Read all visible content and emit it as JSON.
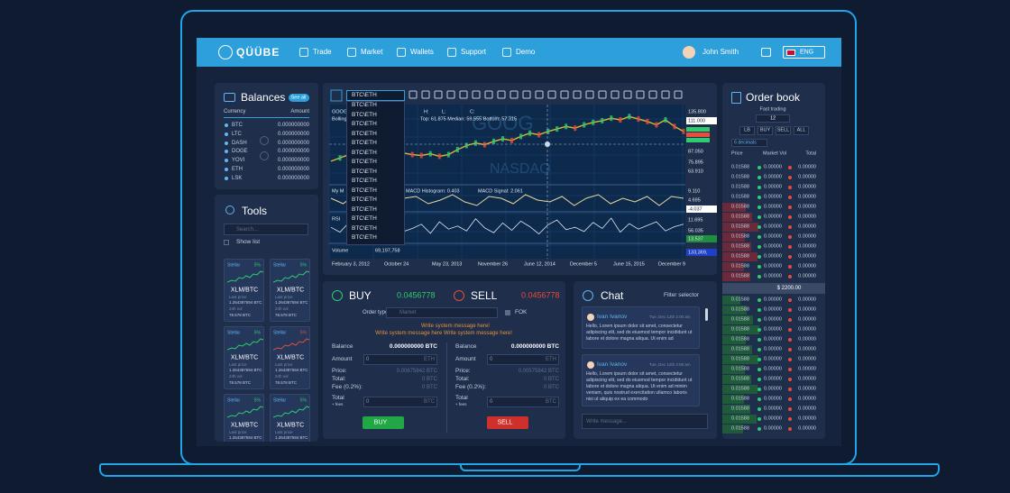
{
  "nav": {
    "logo": "QÜÜBE",
    "items": [
      "Trade",
      "Market",
      "Wallets",
      "Support",
      "Demo"
    ],
    "user": "John Smith",
    "language": "ENG"
  },
  "balances": {
    "title": "Balances",
    "see_all": "See all",
    "headers": [
      "Currency",
      "Amount"
    ],
    "rows": [
      [
        "BTC",
        "0.000000000"
      ],
      [
        "LTC",
        "0.000000000"
      ],
      [
        "DASH",
        "0.000000000"
      ],
      [
        "DOGE",
        "0.000000000"
      ],
      [
        "YOVI",
        "0.000000000"
      ],
      [
        "ETH",
        "0.000000000"
      ],
      [
        "LSK",
        "0.000000000"
      ]
    ]
  },
  "tools": {
    "title": "Tools",
    "search": "Search...",
    "show_list": "Show list",
    "cards": [
      {
        "name": "Stellar",
        "change": "5%",
        "color": "#2ecc71",
        "pair": "XLM/BTC",
        "last_price_label": "Last price",
        "last_price": "1.264387594 BTC",
        "vol_label": "24h vol",
        "vol": "78.578 BTC"
      },
      {
        "name": "Stellar",
        "change": "5%",
        "color": "#2ecc71",
        "pair": "XLM/BTC",
        "last_price_label": "Last price",
        "last_price": "1.264387594 BTC",
        "vol_label": "24h vol",
        "vol": "78.578 BTC"
      },
      {
        "name": "Stellar",
        "change": "5%",
        "color": "#2ecc71",
        "pair": "XLM/BTC",
        "last_price_label": "Last price",
        "last_price": "1.264387594 BTC",
        "vol_label": "24h vol",
        "vol": "78.578 BTC"
      },
      {
        "name": "Stellar",
        "change": "5%",
        "color": "#e74c3c",
        "pair": "XLM/BTC",
        "last_price_label": "Last price",
        "last_price": "1.264387594 BTC",
        "vol_label": "24h vol",
        "vol": "78.578 BTC"
      },
      {
        "name": "Stellar",
        "change": "5%",
        "color": "#2ecc71",
        "pair": "XLM/BTC",
        "last_price_label": "Last price",
        "last_price": "1.264387594 BTC",
        "vol_label": "24h vol",
        "vol": "78.578 BTC"
      },
      {
        "name": "Stellar",
        "change": "5%",
        "color": "#2ecc71",
        "pair": "XLM/BTC",
        "last_price_label": "Last price",
        "last_price": "1.264387594 BTC",
        "vol_label": "24h vol",
        "vol": "78.578 BTC"
      }
    ]
  },
  "chart": {
    "symbol_options": [
      "BTC\\ETH",
      "BTC\\ETH",
      "BTC\\ETH",
      "BTC\\ETH",
      "BTC\\ETH",
      "BTC\\ETH",
      "BTC\\ETH",
      "BTC\\ETH",
      "BTC\\ETH",
      "BTC\\ETH",
      "BTC\\ETH",
      "BTC\\ETH",
      "BTC\\ETH",
      "BTC\\ETH",
      "BTC\\ETH",
      "BTC\\ETH"
    ],
    "symbol": "GOOG",
    "indicator": "Bolling",
    "ohlc_labels": [
      "H:",
      "L:",
      "C:"
    ],
    "bands": "Top: 61.875 Median: 59.555 Bottom: 57.315",
    "macd_label": "My M",
    "macd_histogram": "MACD Histogram: 0.403",
    "macd_signal": "MACD Signal: 2.061",
    "rsi_label": "RSI",
    "volume_label": "Volume",
    "volume": "69,197,758",
    "watermark": [
      "GOOG",
      "NASDAQ"
    ],
    "axis_labels": [
      "135.800",
      "111.000",
      "87.050",
      "75.895",
      "63.910",
      "9.110",
      "4.695",
      "-4.037",
      "11.695",
      "56.035",
      "13.537",
      "133,369,"
    ],
    "dates": [
      "February 3, 2012",
      "October 24",
      "May 23, 2013",
      "November 26",
      "June 12, 2014",
      "December 5",
      "June 15, 2015",
      "December 9"
    ],
    "price_ylim": [
      63.91,
      135.8
    ],
    "price": [
      76,
      80,
      84,
      83,
      88,
      92,
      95,
      90,
      86,
      84,
      83,
      85,
      82,
      84,
      90,
      95,
      98,
      96,
      100,
      103,
      101,
      106,
      110,
      108,
      112,
      115,
      118,
      116,
      120,
      123,
      125,
      128,
      126,
      130,
      127,
      124,
      120,
      126,
      118,
      112
    ],
    "macd": [
      1,
      -2,
      3,
      -1,
      2,
      -3,
      1,
      2,
      -2,
      0,
      3,
      -1,
      -3,
      2,
      1,
      -2,
      3,
      0,
      -1,
      2,
      -3,
      1,
      3,
      -2,
      1,
      -1,
      2,
      -3,
      2,
      1
    ],
    "rsi": [
      52,
      44,
      60,
      48,
      55,
      40,
      58,
      63,
      45,
      50,
      57,
      42,
      61,
      49,
      54,
      46,
      66,
      51,
      43,
      59,
      47,
      62,
      53,
      41,
      56,
      64,
      48,
      52,
      45,
      60,
      50,
      67,
      44,
      58,
      49,
      55,
      61,
      46,
      53,
      57
    ]
  },
  "trade": {
    "buy": {
      "title": "BUY",
      "price": "0.0456778",
      "button": "BUY"
    },
    "sell": {
      "title": "SELL",
      "price": "0.0456778",
      "button": "SELL"
    },
    "order_type_label": "Order type",
    "order_type": "Market",
    "fok": "FOK",
    "messages": [
      "Write system message here!",
      "Write system message here Write system message here!"
    ],
    "left": {
      "balance_label": "Balance",
      "balance": "0.000000000 BTC",
      "amount_label": "Amount",
      "amount": "0",
      "amount_unit": "ETH",
      "price_label": "Price:",
      "price": "0.00675842 BTC",
      "total_label": "Total:",
      "total": "0 BTC",
      "fee_label": "Fee (0.2%):",
      "fee": "0 BTC",
      "total_fees_label": "Total",
      "total_fees_sub": "+ fees",
      "total_fees": "0",
      "total_fees_unit": "BTC"
    },
    "right": {
      "balance_label": "Balance",
      "balance": "0.000000000 BTC",
      "amount_label": "Amount",
      "amount": "0",
      "amount_unit": "ETH",
      "price_label": "Price:",
      "price": "0.00575842 BTC",
      "total_label": "Total:",
      "total": "0 BTC",
      "fee_label": "Fee (0.2%):",
      "fee": "0 BTC",
      "total_fees_label": "Total",
      "total_fees_sub": "+ fees",
      "total_fees": "0",
      "total_fees_unit": "BTC"
    }
  },
  "chat": {
    "title": "Chat",
    "filter": "Filter selector",
    "placeholder": "Write message...",
    "messages": [
      {
        "author": "Ivan Ivanov",
        "time": "Tue, Dec 12th 2:00 am",
        "text": "Hello, Lorem ipsum dolor sit amet, consectetur adipiscing elit, sed do eiusmod tempor incididunt ut labore et dolore magna aliqua. Ut enim ad"
      },
      {
        "author": "Ivan Ivanov",
        "time": "Tue, Dec 12th 2:00 am",
        "text": "Hello, Lorem ipsum dolor sit amet, consectetur adipiscing elit, sed do eiusmod tempor incididunt ut labore et dolore magna aliqua. Ut enim ad minim veniam, quis nostrud exercitation ullamco laboris nisi ut aliquip ex ea commodo"
      }
    ]
  },
  "order_book": {
    "title": "Order book",
    "fast_trading": "Fast trading",
    "amount": "12",
    "filters": [
      "LB",
      "BUY",
      "SELL",
      "ALL"
    ],
    "decimals": "6 decimals",
    "headers": [
      "Price",
      "Market Vol",
      "Total"
    ],
    "asks": [
      [
        "0.01588",
        "0.00000",
        "0.00000"
      ],
      [
        "0.01588",
        "0.00000",
        "0.00000"
      ],
      [
        "0.01588",
        "0.00000",
        "0.00000"
      ],
      [
        "0.01588",
        "0.00000",
        "0.00000"
      ],
      [
        "0.01588",
        "0.00000",
        "0.00000"
      ],
      [
        "0.01588",
        "0.00000",
        "0.00000"
      ],
      [
        "0.01588",
        "0.00000",
        "0.00000"
      ],
      [
        "0.01588",
        "0.00000",
        "0.00000"
      ],
      [
        "0.01588",
        "0.00000",
        "0.00000"
      ],
      [
        "0.01588",
        "0.00000",
        "0.00000"
      ],
      [
        "0.01588",
        "0.00000",
        "0.00000"
      ],
      [
        "0.01588",
        "0.00000",
        "0.00000"
      ]
    ],
    "spread": "$ 2200.00",
    "bids": [
      [
        "0.01588",
        "0.00000",
        "0.00000"
      ],
      [
        "0.01588",
        "0.00000",
        "0.00000"
      ],
      [
        "0.01588",
        "0.00000",
        "0.00000"
      ],
      [
        "0.01588",
        "0.00000",
        "0.00000"
      ],
      [
        "0.01588",
        "0.00000",
        "0.00000"
      ],
      [
        "0.01588",
        "0.00000",
        "0.00000"
      ],
      [
        "0.01588",
        "0.00000",
        "0.00000"
      ],
      [
        "0.01588",
        "0.00000",
        "0.00000"
      ],
      [
        "0.01588",
        "0.00000",
        "0.00000"
      ],
      [
        "0.01588",
        "0.00000",
        "0.00000"
      ],
      [
        "0.01588",
        "0.00000",
        "0.00000"
      ],
      [
        "0.01588",
        "0.00000",
        "0.00000"
      ],
      [
        "0.01588",
        "0.00000",
        "0.00000"
      ],
      [
        "0.01588",
        "0.00000",
        "0.00000"
      ]
    ]
  }
}
